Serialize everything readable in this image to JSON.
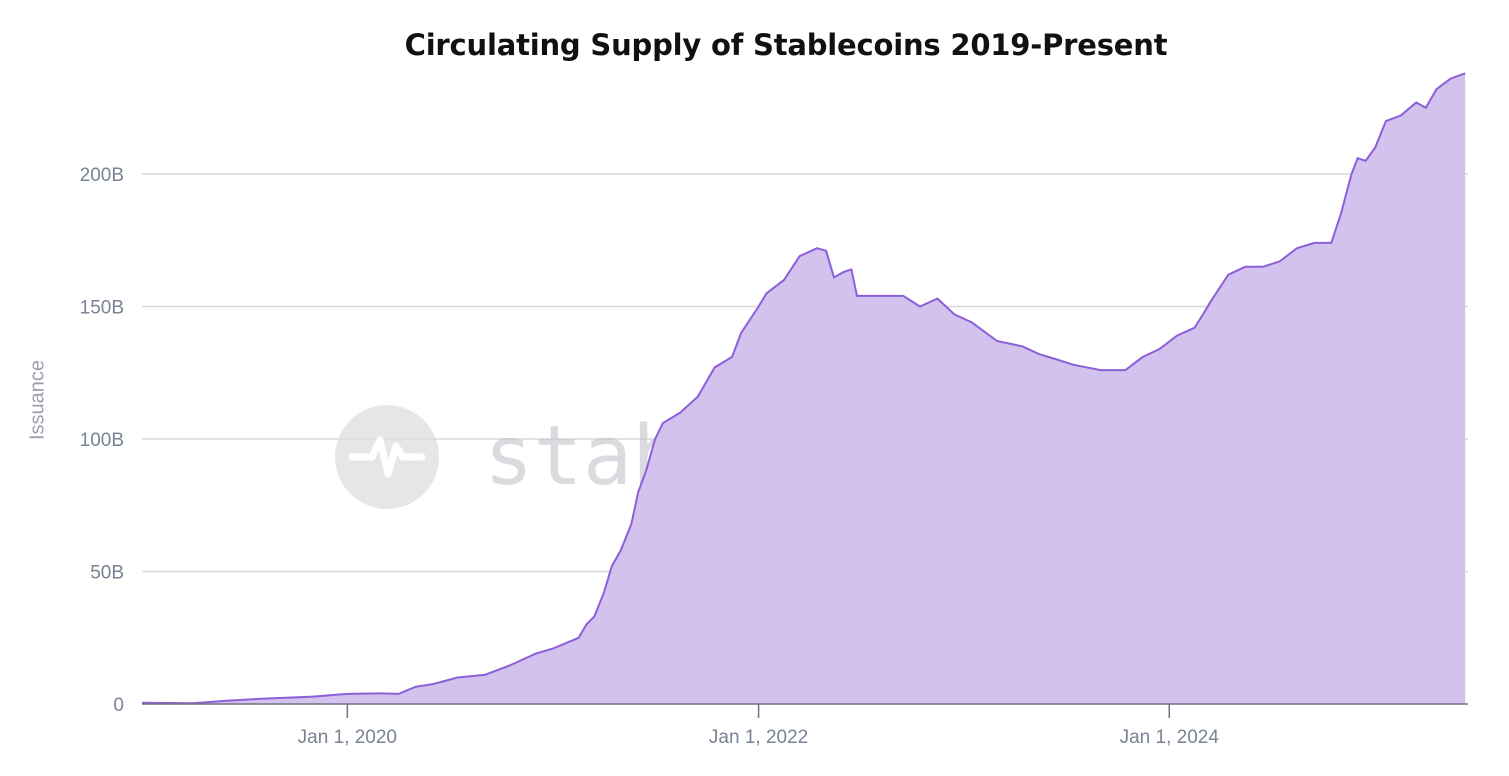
{
  "chart_data": {
    "type": "area",
    "title": "Circulating Supply of Stablecoins 2019-Present",
    "ylabel": "Issuance",
    "xlabel": "",
    "xlim": [
      "2019-01-01",
      "2025-06-15"
    ],
    "ylim": [
      0,
      240
    ],
    "y_unit": "B",
    "y_ticks": [
      {
        "value": 0,
        "label": "0"
      },
      {
        "value": 50,
        "label": "50B"
      },
      {
        "value": 100,
        "label": "100B"
      },
      {
        "value": 150,
        "label": "150B"
      },
      {
        "value": 200,
        "label": "200B"
      }
    ],
    "x_ticks": [
      {
        "value": "2020-01-01",
        "label": "Jan 1, 2020"
      },
      {
        "value": "2022-01-01",
        "label": "Jan 1, 2022"
      },
      {
        "value": "2024-01-01",
        "label": "Jan 1, 2024"
      }
    ],
    "grid": true,
    "colors": {
      "line": "#8d5fd8",
      "fill": "#d3c1ee",
      "grid": "#d9d9dd",
      "axis": "#6e7584"
    },
    "series": [
      {
        "points": [
          [
            "2019-01-01",
            0.5
          ],
          [
            "2019-04-01",
            0.3
          ],
          [
            "2019-06-01",
            1.2
          ],
          [
            "2019-08-01",
            2.0
          ],
          [
            "2019-11-01",
            2.8
          ],
          [
            "2020-01-01",
            3.8
          ],
          [
            "2020-03-01",
            4.0
          ],
          [
            "2020-04-01",
            3.8
          ],
          [
            "2020-05-01",
            6.5
          ],
          [
            "2020-06-01",
            7.5
          ],
          [
            "2020-07-15",
            10.0
          ],
          [
            "2020-09-01",
            11.0
          ],
          [
            "2020-10-15",
            14.5
          ],
          [
            "2020-12-01",
            19.0
          ],
          [
            "2021-01-01",
            21.0
          ],
          [
            "2021-02-15",
            25.0
          ],
          [
            "2021-03-01",
            30.0
          ],
          [
            "2021-03-15",
            33.0
          ],
          [
            "2021-04-01",
            42.0
          ],
          [
            "2021-04-15",
            52.0
          ],
          [
            "2021-05-01",
            58.0
          ],
          [
            "2021-05-20",
            68.0
          ],
          [
            "2021-06-01",
            80.0
          ],
          [
            "2021-06-15",
            88.0
          ],
          [
            "2021-07-01",
            100.0
          ],
          [
            "2021-07-15",
            106.0
          ],
          [
            "2021-08-15",
            110.0
          ],
          [
            "2021-09-15",
            116.0
          ],
          [
            "2021-10-15",
            127.0
          ],
          [
            "2021-11-15",
            131.0
          ],
          [
            "2021-12-01",
            140.0
          ],
          [
            "2022-01-01",
            150.0
          ],
          [
            "2022-01-15",
            155.0
          ],
          [
            "2022-02-15",
            160.0
          ],
          [
            "2022-03-15",
            169.0
          ],
          [
            "2022-04-15",
            172.0
          ],
          [
            "2022-05-01",
            171.0
          ],
          [
            "2022-05-15",
            161.0
          ],
          [
            "2022-06-01",
            163.0
          ],
          [
            "2022-06-15",
            164.0
          ],
          [
            "2022-06-25",
            154.0
          ],
          [
            "2022-08-01",
            154.0
          ],
          [
            "2022-09-15",
            154.0
          ],
          [
            "2022-10-15",
            150.0
          ],
          [
            "2022-11-15",
            153.0
          ],
          [
            "2022-12-15",
            147.0
          ],
          [
            "2023-01-15",
            144.0
          ],
          [
            "2023-03-01",
            137.0
          ],
          [
            "2023-04-15",
            135.0
          ],
          [
            "2023-05-15",
            132.0
          ],
          [
            "2023-06-15",
            130.0
          ],
          [
            "2023-07-15",
            128.0
          ],
          [
            "2023-09-01",
            126.0
          ],
          [
            "2023-10-15",
            126.0
          ],
          [
            "2023-11-15",
            131.0
          ],
          [
            "2023-12-15",
            134.0
          ],
          [
            "2024-01-15",
            139.0
          ],
          [
            "2024-02-15",
            142.0
          ],
          [
            "2024-03-01",
            147.0
          ],
          [
            "2024-03-15",
            152.0
          ],
          [
            "2024-04-15",
            162.0
          ],
          [
            "2024-05-15",
            165.0
          ],
          [
            "2024-06-15",
            165.0
          ],
          [
            "2024-07-15",
            167.0
          ],
          [
            "2024-08-15",
            172.0
          ],
          [
            "2024-09-15",
            174.0
          ],
          [
            "2024-10-15",
            174.0
          ],
          [
            "2024-11-01",
            185.0
          ],
          [
            "2024-11-20",
            200.0
          ],
          [
            "2024-12-01",
            206.0
          ],
          [
            "2024-12-15",
            205.0
          ],
          [
            "2025-01-01",
            210.0
          ],
          [
            "2025-01-20",
            220.0
          ],
          [
            "2025-02-15",
            222.0
          ],
          [
            "2025-03-15",
            227.0
          ],
          [
            "2025-04-01",
            225.0
          ],
          [
            "2025-04-20",
            232.0
          ],
          [
            "2025-05-15",
            236.0
          ],
          [
            "2025-06-10",
            238.0
          ]
        ]
      }
    ],
    "watermark": "stablepulse.org"
  }
}
